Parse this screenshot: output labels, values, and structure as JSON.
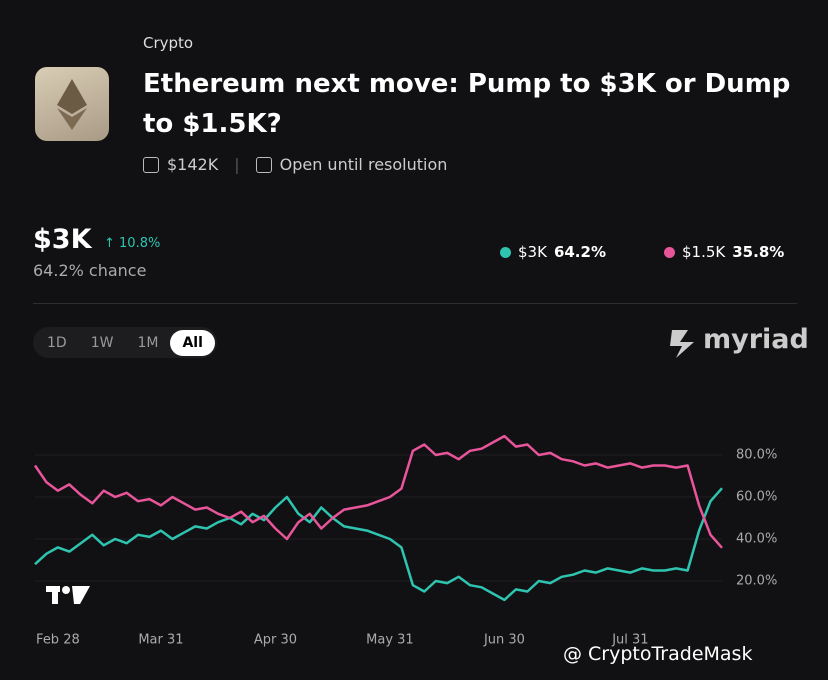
{
  "header": {
    "category": "Crypto",
    "title": "Ethereum next move: Pump to $3K or Dump to $1.5K?",
    "volume": "$142K",
    "status": "Open until resolution"
  },
  "outcome": {
    "name": "$3K",
    "change": "10.8%",
    "chance": "64.2% chance"
  },
  "tabs": [
    "1D",
    "1W",
    "1M",
    "All"
  ],
  "brand": "myriad",
  "watermark": "@ CryptoTradeMask",
  "chart_data": {
    "type": "line",
    "categories": [
      null,
      null,
      "Feb 28",
      null,
      null,
      null,
      null,
      null,
      null,
      null,
      null,
      "Mar 31",
      null,
      null,
      null,
      null,
      null,
      null,
      null,
      null,
      null,
      "Apr 30",
      null,
      null,
      null,
      null,
      null,
      null,
      null,
      null,
      null,
      "May 31",
      null,
      null,
      null,
      null,
      null,
      null,
      null,
      null,
      null,
      "Jun 30",
      null,
      null,
      null,
      null,
      null,
      null,
      null,
      null,
      null,
      null,
      "Jul 31",
      null,
      null,
      null,
      null,
      null,
      null,
      null,
      null
    ],
    "series": [
      {
        "name": "$3K",
        "current": "64.2%",
        "color": "#2ec4b0",
        "values": [
          28,
          33,
          36,
          34,
          38,
          42,
          37,
          40,
          38,
          42,
          41,
          44,
          40,
          43,
          46,
          45,
          48,
          50,
          47,
          52,
          49,
          55,
          60,
          52,
          48,
          55,
          50,
          46,
          45,
          44,
          42,
          40,
          36,
          18,
          15,
          20,
          19,
          22,
          18,
          17,
          14,
          11,
          16,
          15,
          20,
          19,
          22,
          23,
          25,
          24,
          26,
          25,
          24,
          26,
          25,
          25,
          26,
          25,
          44,
          58,
          64.2
        ]
      },
      {
        "name": "$1.5K",
        "current": "35.8%",
        "color": "#e8559a",
        "values": [
          75,
          67,
          63,
          66,
          61,
          57,
          63,
          60,
          62,
          58,
          59,
          56,
          60,
          57,
          54,
          55,
          52,
          50,
          53,
          48,
          51,
          45,
          40,
          48,
          52,
          45,
          50,
          54,
          55,
          56,
          58,
          60,
          64,
          82,
          85,
          80,
          81,
          78,
          82,
          83,
          86,
          89,
          84,
          85,
          80,
          81,
          78,
          77,
          75,
          76,
          74,
          75,
          76,
          74,
          75,
          75,
          74,
          75,
          56,
          42,
          35.8
        ]
      }
    ],
    "ylim": [
      10,
      90
    ],
    "yticks": [
      {
        "value": 20,
        "label": "20.0%"
      },
      {
        "value": 40,
        "label": "40.0%"
      },
      {
        "value": 60,
        "label": "60.0%"
      },
      {
        "value": 80,
        "label": "80.0%"
      }
    ],
    "grid": true
  }
}
